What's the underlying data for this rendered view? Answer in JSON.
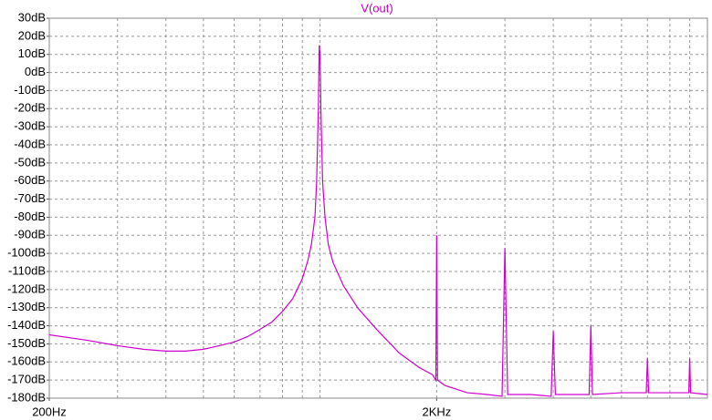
{
  "chart_data": {
    "type": "line",
    "title": "V(out)",
    "title_color": "#c000c0",
    "x": [
      200,
      250,
      300,
      350,
      400,
      450,
      500,
      550,
      600,
      650,
      700,
      750,
      800,
      850,
      900,
      930,
      950,
      970,
      980,
      990,
      995,
      1000,
      1005,
      1015,
      1030,
      1050,
      1080,
      1150,
      1250,
      1400,
      1600,
      1800,
      1950,
      1990,
      2000,
      2010,
      2100,
      2400,
      2700,
      2950,
      3000,
      3050,
      3500,
      3950,
      4000,
      4050,
      4500,
      4950,
      5000,
      5050,
      6000,
      6950,
      7000,
      7050,
      8000,
      8950,
      9000,
      9050,
      10000
    ],
    "series": [
      {
        "name": "V(out)",
        "color": "#d000d0",
        "values": [
          -145,
          -148,
          -151,
          -153,
          -154,
          -154,
          -153,
          -151,
          -149,
          -146,
          -142,
          -138,
          -132,
          -125,
          -114,
          -104,
          -95,
          -80,
          -60,
          -20,
          15,
          10,
          -20,
          -60,
          -80,
          -95,
          -105,
          -118,
          -130,
          -142,
          -155,
          -163,
          -167,
          -170,
          -90,
          -170,
          -173,
          -177,
          -178,
          -179,
          -97,
          -178,
          -178,
          -179,
          -143,
          -178,
          -178,
          -178,
          -140,
          -178,
          -177,
          -177,
          -158,
          -177,
          -177,
          -177,
          -158,
          -177,
          -178
        ]
      }
    ],
    "xlim": [
      200,
      10000
    ],
    "xscale": "log",
    "xticks": [
      {
        "value": 200,
        "label": "200Hz"
      },
      {
        "value": 2000,
        "label": "2KHz"
      }
    ],
    "ylim": [
      -180,
      30
    ],
    "yticks": [
      {
        "value": 30,
        "label": "30dB"
      },
      {
        "value": 20,
        "label": "20dB"
      },
      {
        "value": 10,
        "label": "10dB"
      },
      {
        "value": 0,
        "label": "0dB"
      },
      {
        "value": -10,
        "label": "-10dB"
      },
      {
        "value": -20,
        "label": "-20dB"
      },
      {
        "value": -30,
        "label": "-30dB"
      },
      {
        "value": -40,
        "label": "-40dB"
      },
      {
        "value": -50,
        "label": "-50dB"
      },
      {
        "value": -60,
        "label": "-60dB"
      },
      {
        "value": -70,
        "label": "-70dB"
      },
      {
        "value": -80,
        "label": "-80dB"
      },
      {
        "value": -90,
        "label": "-90dB"
      },
      {
        "value": -100,
        "label": "-100dB"
      },
      {
        "value": -110,
        "label": "-110dB"
      },
      {
        "value": -120,
        "label": "-120dB"
      },
      {
        "value": -130,
        "label": "-130dB"
      },
      {
        "value": -140,
        "label": "-140dB"
      },
      {
        "value": -150,
        "label": "-150dB"
      },
      {
        "value": -160,
        "label": "-160dB"
      },
      {
        "value": -170,
        "label": "-170dB"
      },
      {
        "value": -180,
        "label": "-180dB"
      }
    ],
    "grid": true
  }
}
